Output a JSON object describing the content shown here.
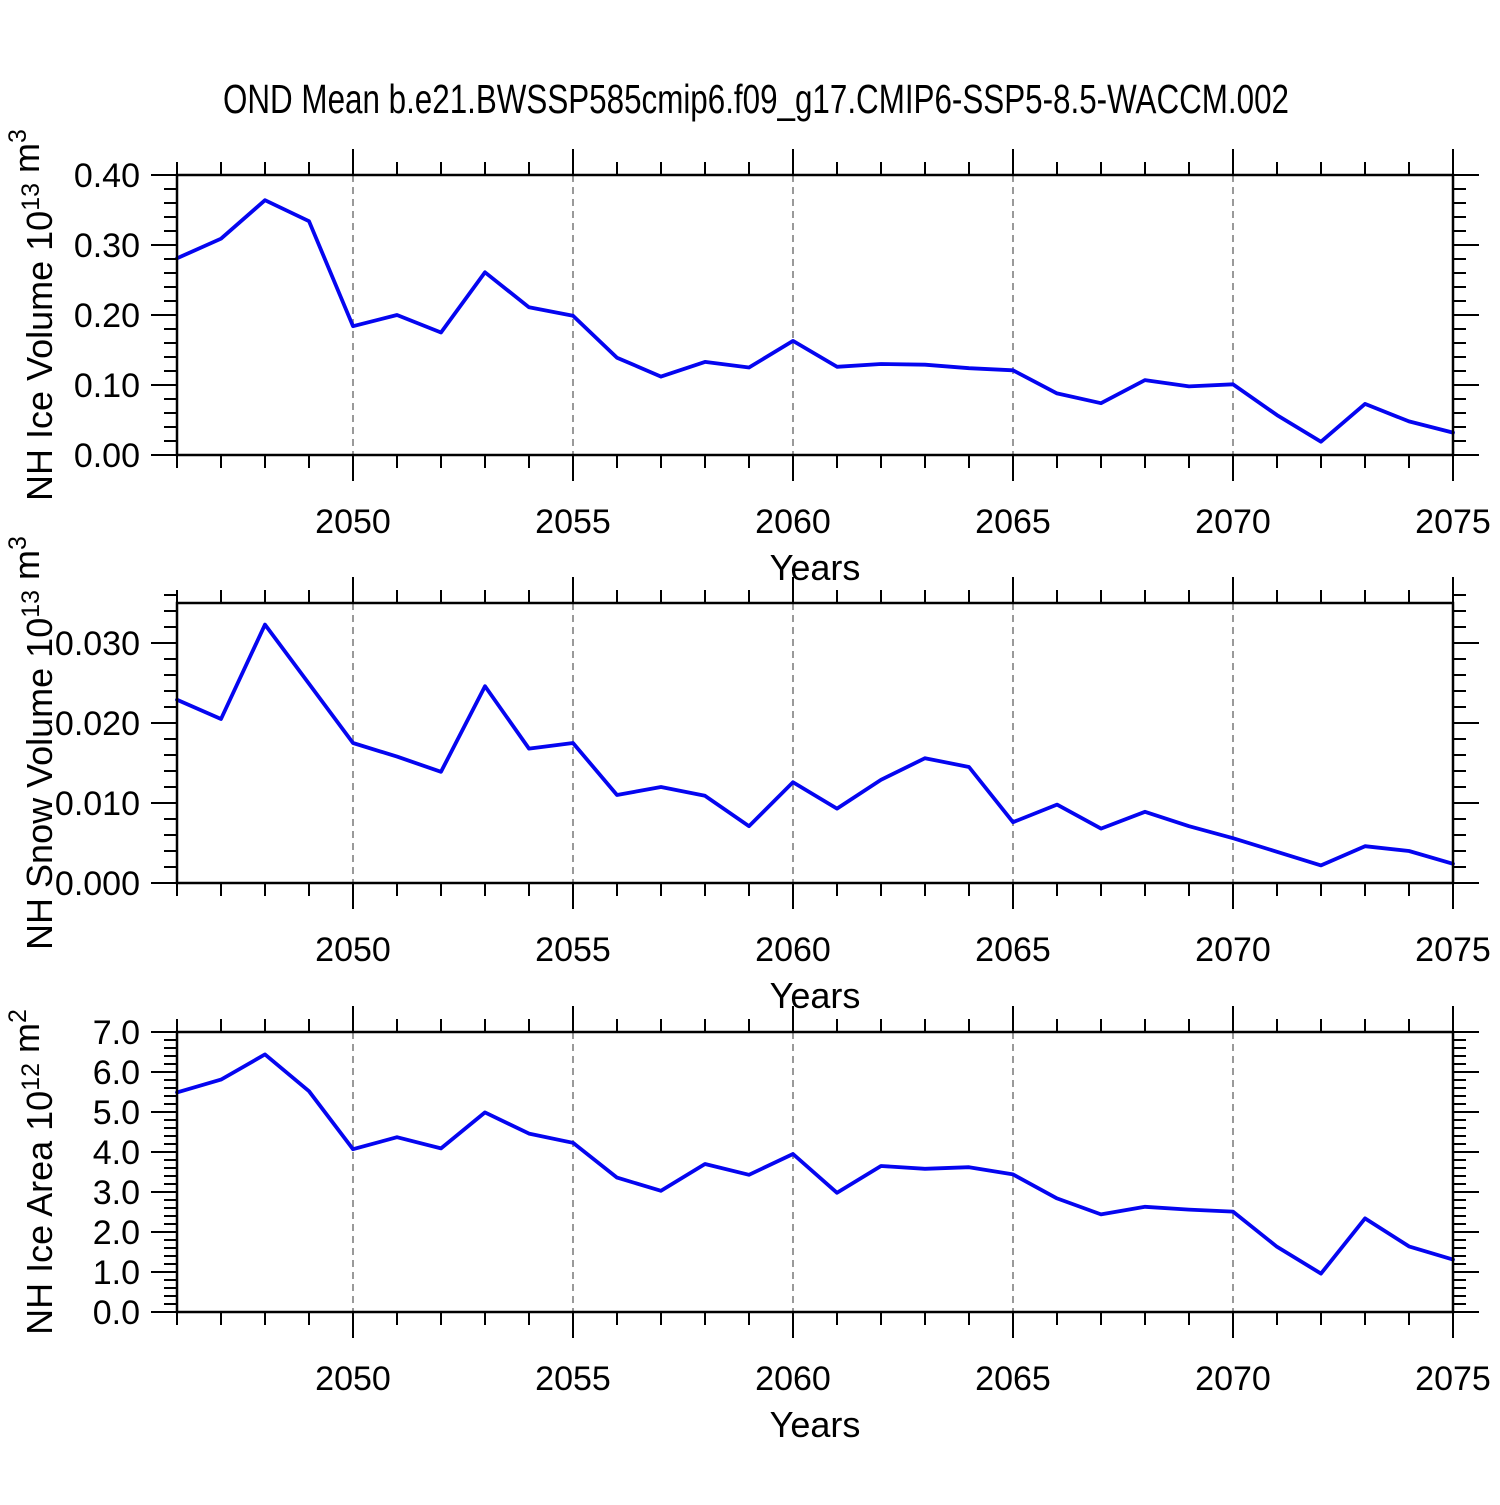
{
  "title": "OND Mean b.e21.BWSSP585cmip6.f09_g17.CMIP6-SSP5-8.5-WACCM.002",
  "line_color": "#0505f0",
  "grid_color": "#9a9a9a",
  "axis_color": "#000000",
  "chart_data": [
    {
      "type": "line",
      "xlabel": "Years",
      "ylabel": "NH Ice Volume 10^13 m^3",
      "ylabel_rich": [
        {
          "t": "NH Ice Volume 10"
        },
        {
          "t": "13",
          "sup": true
        },
        {
          "t": " m"
        },
        {
          "t": "3",
          "sup": true
        }
      ],
      "x": [
        2046,
        2047,
        2048,
        2049,
        2050,
        2051,
        2052,
        2053,
        2054,
        2055,
        2056,
        2057,
        2058,
        2059,
        2060,
        2061,
        2062,
        2063,
        2064,
        2065,
        2066,
        2067,
        2068,
        2069,
        2070,
        2071,
        2072,
        2073,
        2074,
        2075
      ],
      "values": [
        0.281,
        0.309,
        0.364,
        0.334,
        0.184,
        0.2,
        0.175,
        0.261,
        0.211,
        0.199,
        0.139,
        0.112,
        0.133,
        0.125,
        0.163,
        0.126,
        0.13,
        0.129,
        0.124,
        0.121,
        0.088,
        0.074,
        0.107,
        0.098,
        0.101,
        0.057,
        0.019,
        0.073,
        0.048,
        0.032
      ],
      "xlim": [
        2046,
        2075
      ],
      "ylim": [
        0,
        0.4
      ],
      "yticks": [
        0.0,
        0.1,
        0.2,
        0.3,
        0.4
      ],
      "ytick_labels": [
        "0.00",
        "0.10",
        "0.20",
        "0.30",
        "0.40"
      ],
      "yminor_step": 0.02,
      "xticks": [
        2050,
        2055,
        2060,
        2065,
        2070,
        2075
      ],
      "xtick_labels": [
        "2050",
        "2055",
        "2060",
        "2065",
        "2070",
        "2075"
      ],
      "xminor_step": 1,
      "grid_x": [
        2050,
        2055,
        2060,
        2065,
        2070
      ],
      "grid_style": "vertical-dashed"
    },
    {
      "type": "line",
      "xlabel": "Years",
      "ylabel": "NH Snow Volume 10^13 m^3",
      "ylabel_rich": [
        {
          "t": "NH Snow Volume 10"
        },
        {
          "t": "13",
          "sup": true
        },
        {
          "t": " m"
        },
        {
          "t": "3",
          "sup": true
        }
      ],
      "x": [
        2046,
        2047,
        2048,
        2049,
        2050,
        2051,
        2052,
        2053,
        2054,
        2055,
        2056,
        2057,
        2058,
        2059,
        2060,
        2061,
        2062,
        2063,
        2064,
        2065,
        2066,
        2067,
        2068,
        2069,
        2070,
        2071,
        2072,
        2073,
        2074,
        2075
      ],
      "values": [
        0.0229,
        0.0205,
        0.0323,
        0.0249,
        0.0175,
        0.0158,
        0.0139,
        0.0246,
        0.0168,
        0.0175,
        0.011,
        0.012,
        0.0109,
        0.0071,
        0.0126,
        0.0093,
        0.0129,
        0.0156,
        0.0145,
        0.0076,
        0.0098,
        0.0068,
        0.0089,
        0.0071,
        0.0056,
        0.0039,
        0.0022,
        0.0046,
        0.004,
        0.0024
      ],
      "xlim": [
        2046,
        2075
      ],
      "ylim": [
        0,
        0.035
      ],
      "yticks": [
        0.0,
        0.01,
        0.02,
        0.03
      ],
      "ytick_labels": [
        "0.000",
        "0.010",
        "0.020",
        "0.030"
      ],
      "yminor_step": 0.002,
      "xticks": [
        2050,
        2055,
        2060,
        2065,
        2070,
        2075
      ],
      "xtick_labels": [
        "2050",
        "2055",
        "2060",
        "2065",
        "2070",
        "2075"
      ],
      "xminor_step": 1,
      "grid_x": [
        2050,
        2055,
        2060,
        2065,
        2070
      ],
      "grid_style": "vertical-dashed"
    },
    {
      "type": "line",
      "xlabel": "Years",
      "ylabel": "NH Ice Area 10^12 m^2",
      "ylabel_rich": [
        {
          "t": "NH Ice Area 10"
        },
        {
          "t": "12",
          "sup": true
        },
        {
          "t": " m"
        },
        {
          "t": "2",
          "sup": true
        }
      ],
      "x": [
        2046,
        2047,
        2048,
        2049,
        2050,
        2051,
        2052,
        2053,
        2054,
        2055,
        2056,
        2057,
        2058,
        2059,
        2060,
        2061,
        2062,
        2063,
        2064,
        2065,
        2066,
        2067,
        2068,
        2069,
        2070,
        2071,
        2072,
        2073,
        2074,
        2075
      ],
      "values": [
        5.49,
        5.81,
        6.44,
        5.52,
        4.07,
        4.37,
        4.09,
        4.99,
        4.46,
        4.23,
        3.36,
        3.03,
        3.7,
        3.43,
        3.95,
        2.98,
        3.65,
        3.58,
        3.62,
        3.44,
        2.84,
        2.44,
        2.63,
        2.56,
        2.51,
        1.63,
        0.96,
        2.34,
        1.64,
        1.31
      ],
      "xlim": [
        2046,
        2075
      ],
      "ylim": [
        0,
        7.0
      ],
      "yticks": [
        0.0,
        1.0,
        2.0,
        3.0,
        4.0,
        5.0,
        6.0,
        7.0
      ],
      "ytick_labels": [
        "0.0",
        "1.0",
        "2.0",
        "3.0",
        "4.0",
        "5.0",
        "6.0",
        "7.0"
      ],
      "yminor_step": 0.2,
      "xticks": [
        2050,
        2055,
        2060,
        2065,
        2070,
        2075
      ],
      "xtick_labels": [
        "2050",
        "2055",
        "2060",
        "2065",
        "2070",
        "2075"
      ],
      "xminor_step": 1,
      "grid_x": [
        2050,
        2055,
        2060,
        2065,
        2070
      ],
      "grid_style": "vertical-dashed"
    }
  ]
}
